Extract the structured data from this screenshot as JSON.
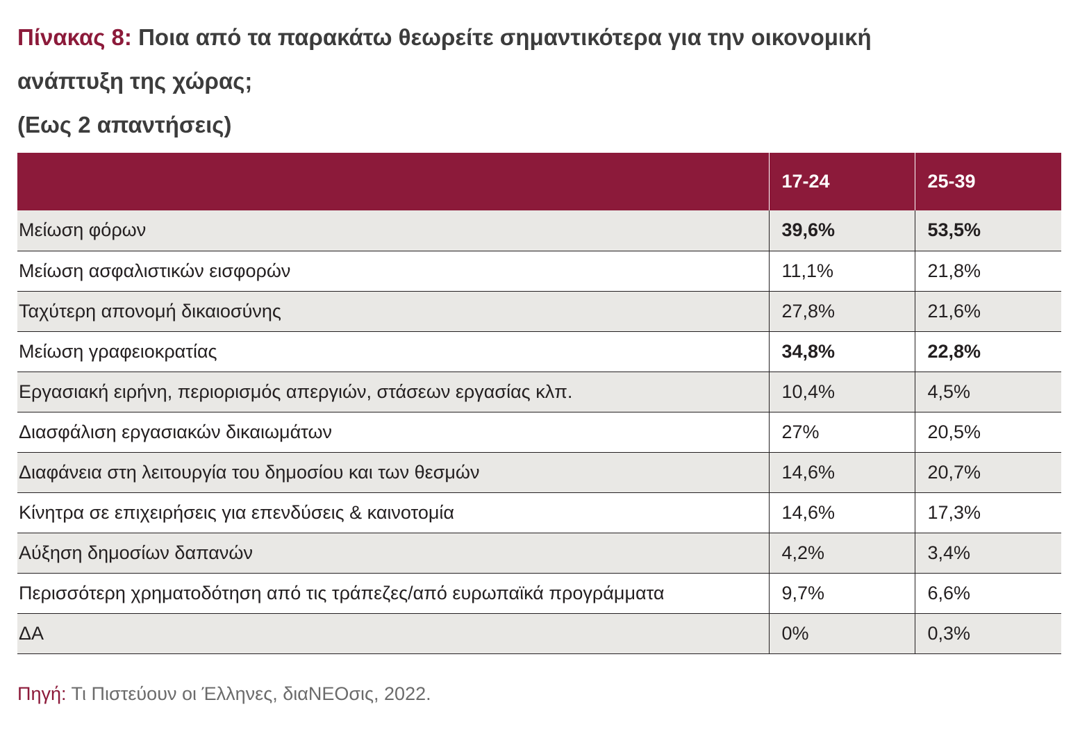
{
  "title": {
    "prefix": "Πίνακας 8:",
    "line1": "Ποια από τα παρακάτω θεωρείτε σημαντικότερα για την οικονομική",
    "line2": "ανάπτυξη της χώρας;",
    "line3": "(Εως 2 απαντήσεις)"
  },
  "table": {
    "header": {
      "label": "",
      "col_a": "17-24",
      "col_b": "25-39"
    },
    "rows": [
      {
        "label": "Μείωση φόρων",
        "a": "39,6%",
        "b": "53,5%",
        "bold": true
      },
      {
        "label": "Μείωση ασφαλιστικών εισφορών",
        "a": "11,1%",
        "b": "21,8%",
        "bold": false
      },
      {
        "label": "Ταχύτερη απονομή δικαιοσύνης",
        "a": "27,8%",
        "b": "21,6%",
        "bold": false
      },
      {
        "label": "Μείωση γραφειοκρατίας",
        "a": "34,8%",
        "b": "22,8%",
        "bold": true
      },
      {
        "label": "Εργασιακή ειρήνη, περιορισμός απεργιών, στάσεων εργασίας κλπ.",
        "a": "10,4%",
        "b": "4,5%",
        "bold": false
      },
      {
        "label": "Διασφάλιση εργασιακών δικαιωμάτων",
        "a": "27%",
        "b": "20,5%",
        "bold": false
      },
      {
        "label": "Διαφάνεια στη λειτουργία του δημοσίου και των θεσμών",
        "a": "14,6%",
        "b": "20,7%",
        "bold": false
      },
      {
        "label": "Κίνητρα σε επιχειρήσεις για επενδύσεις & καινοτομία",
        "a": "14,6%",
        "b": "17,3%",
        "bold": false
      },
      {
        "label": "Αύξηση δημοσίων δαπανών",
        "a": "4,2%",
        "b": "3,4%",
        "bold": false
      },
      {
        "label": "Περισσότερη χρηματοδότηση από τις τράπεζες/από ευρωπαϊκά προγράμματα",
        "a": "9,7%",
        "b": "6,6%",
        "bold": false
      },
      {
        "label": "ΔΑ",
        "a": "0%",
        "b": "0,3%",
        "bold": false
      }
    ]
  },
  "source": {
    "label": "Πηγή:",
    "text": " Τι Πιστεύουν οι Έλληνες, διαΝΕΟσις, 2022."
  },
  "colors": {
    "accent": "#8c1a3a",
    "row_shade": "#e9e8e5",
    "text": "#231f20"
  }
}
